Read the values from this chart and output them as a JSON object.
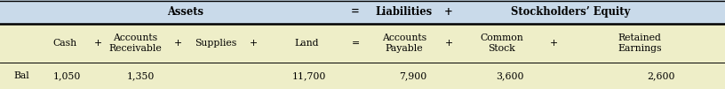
{
  "header_row1": {
    "assets_label": "Assets",
    "eq_sign": "=",
    "liabilities_label": "Liabilities",
    "plus_sign": "+",
    "equity_label": "Stockholders’ Equity"
  },
  "data_row": {
    "label": "Bal",
    "cash": "1,050",
    "ar": "1,350",
    "supplies": "",
    "land": "11,700",
    "ap": "7,900",
    "cs": "3,600",
    "re": "2,600"
  },
  "bg_top": "#c9daea",
  "bg_bottom": "#eeeec8",
  "line_color": "#000000",
  "text_color": "#000000",
  "fs": 7.8
}
